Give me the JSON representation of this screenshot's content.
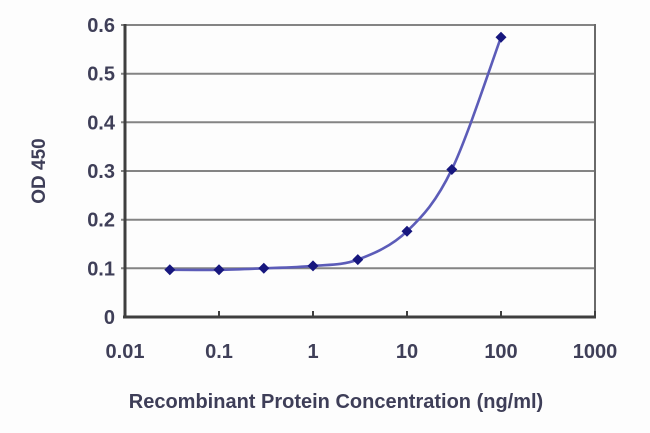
{
  "figure": {
    "background": "#fdfdfd"
  },
  "colors": {
    "gridline": "#848484",
    "axis": "#3f3f3f",
    "frame_right": "#6a6a6a",
    "tick_text": "#3f3f58",
    "title_text": "#3e3e58",
    "line": "#5c5cb8",
    "marker": "#17177e"
  },
  "chart_data": {
    "type": "line",
    "title": "",
    "xlabel": "Recombinant Protein Concentration (ng/ml)",
    "ylabel": "OD 450",
    "x_scale": "log",
    "xlim": [
      0.01,
      1000
    ],
    "ylim": [
      0,
      0.6
    ],
    "x_ticks": [
      0.01,
      0.1,
      1,
      10,
      100,
      1000
    ],
    "x_tick_labels": [
      "0.01",
      "0.1",
      "1",
      "10",
      "100",
      "1000"
    ],
    "y_ticks": [
      0,
      0.1,
      0.2,
      0.3,
      0.4,
      0.5,
      0.6
    ],
    "y_tick_labels": [
      "0",
      "0.1",
      "0.2",
      "0.3",
      "0.4",
      "0.5",
      "0.6"
    ],
    "grid": "horizontal",
    "legend": "none",
    "series": [
      {
        "name": "OD 450",
        "x": [
          0.03,
          0.1,
          0.3,
          1,
          3,
          10,
          30,
          100
        ],
        "y": [
          0.097,
          0.097,
          0.1,
          0.105,
          0.118,
          0.176,
          0.303,
          0.575
        ],
        "marker": "diamond",
        "smooth": true
      }
    ]
  }
}
